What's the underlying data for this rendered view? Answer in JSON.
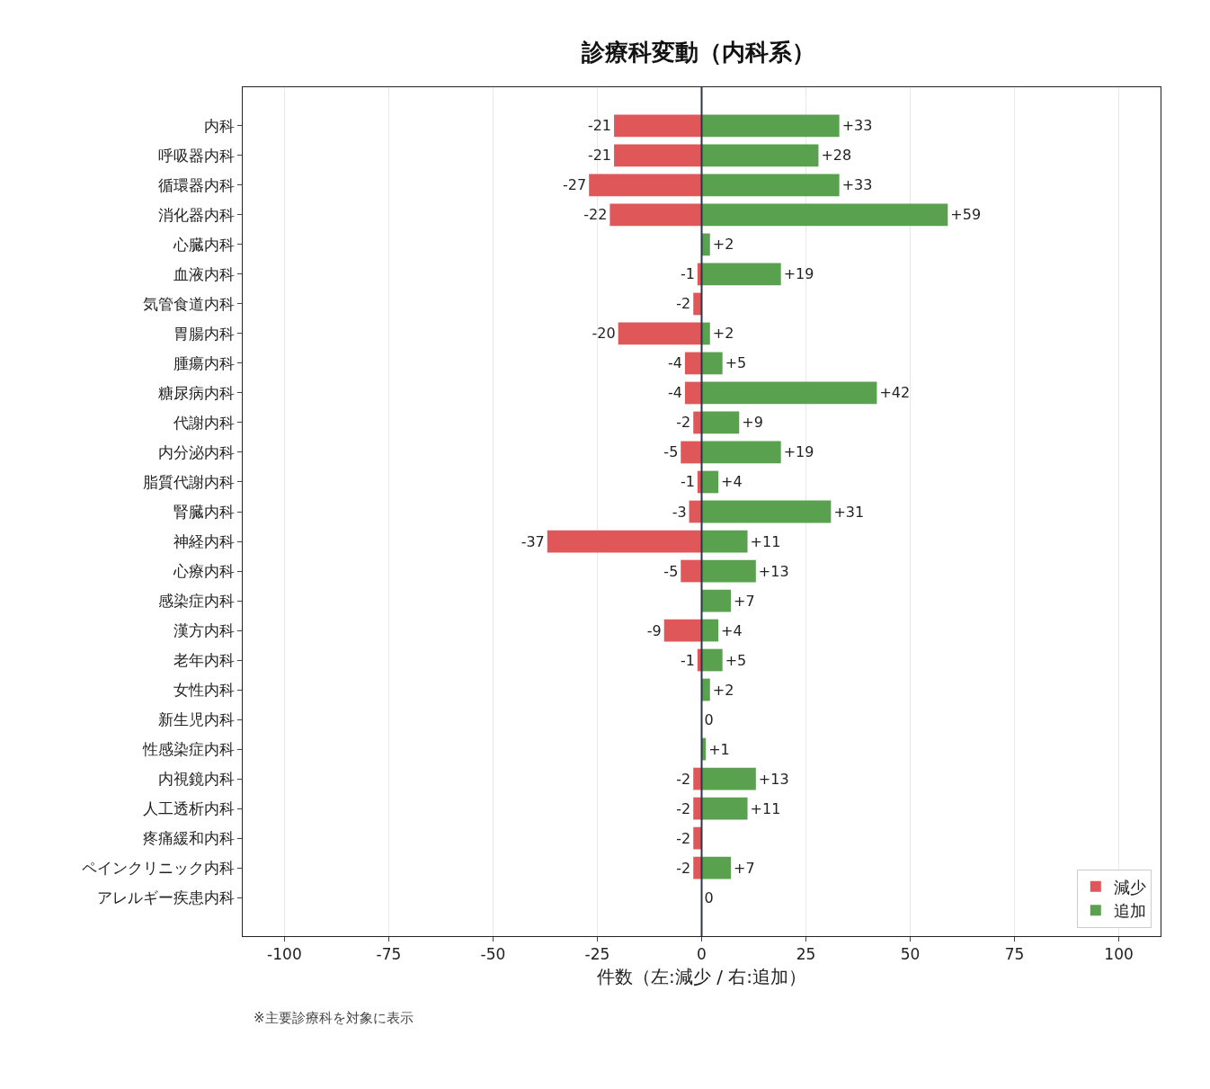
{
  "chart_data": {
    "type": "bar",
    "orientation": "horizontal",
    "stacked": true,
    "title": "診療科変動（内科系）",
    "xlabel": "件数（左:減少 / 右:追加）",
    "categories": [
      "内科",
      "呼吸器内科",
      "循環器内科",
      "消化器内科",
      "心臓内科",
      "血液内科",
      "気管食道内科",
      "胃腸内科",
      "腫瘍内科",
      "糖尿病内科",
      "代謝内科",
      "内分泌内科",
      "脂質代謝内科",
      "腎臓内科",
      "神経内科",
      "心療内科",
      "感染症内科",
      "漢方内科",
      "老年内科",
      "女性内科",
      "新生児内科",
      "性感染症内科",
      "内視鏡内科",
      "人工透析内科",
      "疼痛緩和内科",
      "ペインクリニック内科",
      "アレルギー疾患内科"
    ],
    "series": [
      {
        "name": "減少",
        "color": "#e05759",
        "values": [
          -21,
          -21,
          -27,
          -22,
          null,
          -1,
          -2,
          -20,
          -4,
          -4,
          -2,
          -5,
          -1,
          -3,
          -37,
          -5,
          null,
          -9,
          -1,
          null,
          null,
          null,
          -2,
          -2,
          -2,
          -2,
          null
        ],
        "value_labels": [
          "-21",
          "-21",
          "-27",
          "-22",
          null,
          "-1",
          "-2",
          "-20",
          "-4",
          "-4",
          "-2",
          "-5",
          "-1",
          "-3",
          "-37",
          "-5",
          null,
          "-9",
          "-1",
          null,
          null,
          null,
          "-2",
          "-2",
          "-2",
          "-2",
          null
        ]
      },
      {
        "name": "追加",
        "color": "#59a14f",
        "values": [
          33,
          28,
          33,
          59,
          2,
          19,
          null,
          2,
          5,
          42,
          9,
          19,
          4,
          31,
          11,
          13,
          7,
          4,
          5,
          2,
          0,
          1,
          13,
          11,
          null,
          7,
          0
        ],
        "value_labels": [
          "+33",
          "+28",
          "+33",
          "+59",
          "+2",
          "+19",
          null,
          "+2",
          "+5",
          "+42",
          "+9",
          "+19",
          "+4",
          "+31",
          "+11",
          "+13",
          "+7",
          "+4",
          "+5",
          "+2",
          "0",
          "+1",
          "+13",
          "+11",
          null,
          "+7",
          "0"
        ]
      }
    ],
    "xlim": [
      -110,
      110
    ],
    "xticks": [
      -100,
      -75,
      -50,
      -25,
      0,
      25,
      50,
      75,
      100
    ],
    "grid": "x",
    "legend": "bottom right",
    "ref_lines": [
      {
        "axis": "x",
        "value": 0,
        "color": "#2d3748"
      }
    ],
    "annotations": [
      "※主要診療科を対象に表示"
    ]
  }
}
